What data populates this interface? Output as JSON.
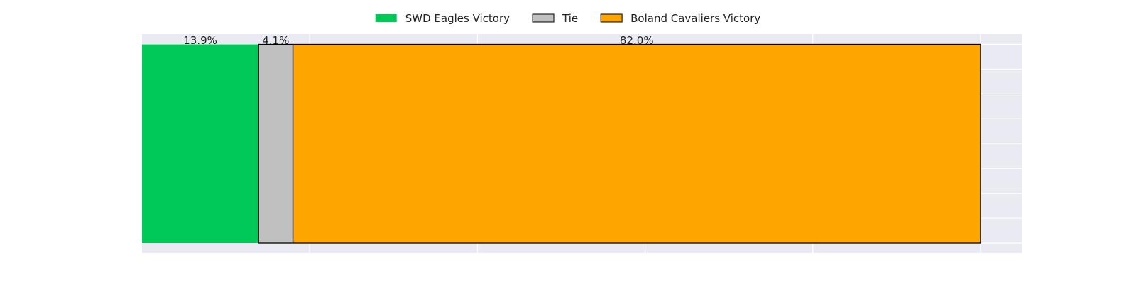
{
  "chart_data": {
    "type": "bar",
    "orientation": "horizontal",
    "stacked": true,
    "categories": [
      ""
    ],
    "series": [
      {
        "name": "SWD Eagles Victory",
        "values": [
          13.9
        ],
        "label": "13.9%",
        "color": "#00c957",
        "edge": "none"
      },
      {
        "name": "Tie",
        "values": [
          4.1
        ],
        "label": "4.1%",
        "color": "#c0c0c0",
        "edge": "#000000"
      },
      {
        "name": "Boland Cavaliers Victory",
        "values": [
          82.0
        ],
        "label": "82.0%",
        "color": "#ffa500",
        "edge": "#000000"
      }
    ],
    "xlim": [
      0,
      105
    ],
    "x_gridlines": [
      20,
      40,
      60,
      80,
      100
    ],
    "y_gridline_count": 8,
    "grid": true,
    "legend_position": "top-center",
    "background_color": "#eaeaf2",
    "grid_color": "#ffffff"
  }
}
